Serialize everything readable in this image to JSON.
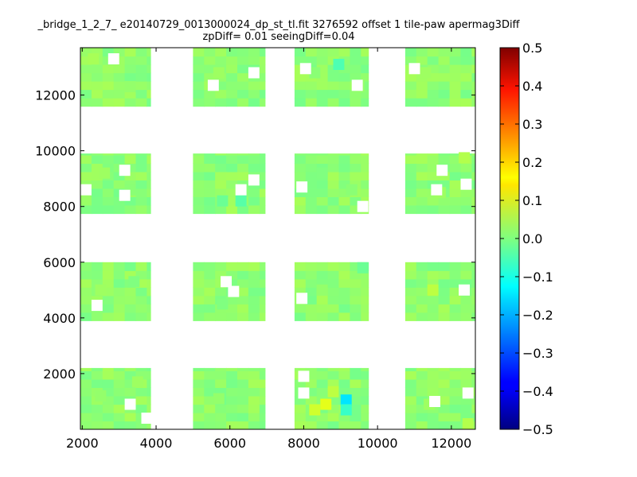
{
  "chart_data": {
    "type": "heatmap",
    "title_line1": "_bridge_1_2_7_ e20140729_0013000024_dp_st_tl.fit 3276592 offset 1 tile-paw apermag3Diff",
    "title_line2": "zpDiff= 0.01 seeingDiff=0.04",
    "xlabel": "",
    "ylabel": "",
    "xlim": [
      1950,
      12650
    ],
    "ylim": [
      0,
      13700
    ],
    "xticks": [
      2000,
      4000,
      6000,
      8000,
      10000,
      12000
    ],
    "yticks": [
      2000,
      4000,
      6000,
      8000,
      10000,
      12000
    ],
    "colorbar": {
      "range": [
        -0.5,
        0.5
      ],
      "ticks": [
        "0.5",
        "0.4",
        "0.3",
        "0.2",
        "0.1",
        "0.0",
        "−0.1",
        "−0.2",
        "−0.3",
        "−0.4",
        "−0.5"
      ],
      "colormap": "jet"
    },
    "tile_blocks": {
      "x_ranges": [
        [
          1950,
          3850
        ],
        [
          5000,
          6950
        ],
        [
          7750,
          9750
        ],
        [
          10750,
          12650
        ]
      ],
      "y_ranges": [
        [
          0,
          2200
        ],
        [
          3900,
          6000
        ],
        [
          7750,
          9900
        ],
        [
          11600,
          13700
        ]
      ]
    },
    "cells": [
      {
        "x": 2300,
        "y": 13300,
        "value": 0.04
      },
      {
        "x": 3300,
        "y": 12300,
        "value": 0.02
      },
      {
        "x": 5700,
        "y": 12800,
        "value": 0.03
      },
      {
        "x": 8300,
        "y": 12800,
        "value": 0.01
      },
      {
        "x": 8950,
        "y": 13100,
        "value": -0.05
      },
      {
        "x": 9500,
        "y": 12300,
        "value": 0.02
      },
      {
        "x": 11300,
        "y": 12800,
        "value": 0.03
      },
      {
        "x": 2600,
        "y": 9200,
        "value": 0.03
      },
      {
        "x": 3300,
        "y": 8600,
        "value": 0.01
      },
      {
        "x": 5800,
        "y": 8200,
        "value": -0.02
      },
      {
        "x": 6300,
        "y": 8200,
        "value": -0.04
      },
      {
        "x": 8500,
        "y": 9200,
        "value": 0.0
      },
      {
        "x": 9300,
        "y": 8600,
        "value": 0.01
      },
      {
        "x": 11700,
        "y": 8500,
        "value": 0.03
      },
      {
        "x": 12350,
        "y": 9750,
        "value": 0.05
      },
      {
        "x": 2500,
        "y": 5000,
        "value": 0.03
      },
      {
        "x": 3400,
        "y": 5300,
        "value": 0.0
      },
      {
        "x": 5800,
        "y": 4500,
        "value": 0.0
      },
      {
        "x": 8500,
        "y": 5000,
        "value": 0.02
      },
      {
        "x": 9600,
        "y": 5800,
        "value": -0.02
      },
      {
        "x": 11500,
        "y": 5000,
        "value": 0.06
      },
      {
        "x": 2500,
        "y": 1200,
        "value": 0.02
      },
      {
        "x": 3500,
        "y": 1700,
        "value": 0.03
      },
      {
        "x": 5700,
        "y": 1100,
        "value": 0.02
      },
      {
        "x": 8300,
        "y": 700,
        "value": 0.08
      },
      {
        "x": 8600,
        "y": 900,
        "value": 0.1
      },
      {
        "x": 9150,
        "y": 1050,
        "value": -0.15
      },
      {
        "x": 9150,
        "y": 700,
        "value": -0.07
      },
      {
        "x": 8800,
        "y": 1350,
        "value": 0.06
      },
      {
        "x": 11400,
        "y": 900,
        "value": 0.03
      },
      {
        "x": 12450,
        "y": 200,
        "value": 0.05
      }
    ]
  }
}
